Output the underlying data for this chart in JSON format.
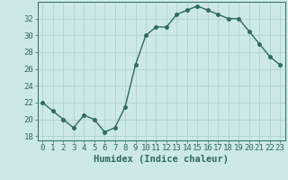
{
  "x": [
    0,
    1,
    2,
    3,
    4,
    5,
    6,
    7,
    8,
    9,
    10,
    11,
    12,
    13,
    14,
    15,
    16,
    17,
    18,
    19,
    20,
    21,
    22,
    23
  ],
  "y": [
    22,
    21,
    20,
    19,
    20.5,
    20,
    18.5,
    19,
    21.5,
    26.5,
    30,
    31,
    31,
    32.5,
    33,
    33.5,
    33,
    32.5,
    32,
    32,
    30.5,
    29,
    27.5,
    26.5
  ],
  "line_color": "#2d6b5e",
  "marker_color": "#2d6b5e",
  "bg_color": "#cce8e8",
  "grid_color": "#aacece",
  "xlabel": "Humidex (Indice chaleur)",
  "xlim": [
    -0.5,
    23.5
  ],
  "ylim": [
    17.5,
    34.0
  ],
  "yticks": [
    18,
    20,
    22,
    24,
    26,
    28,
    30,
    32
  ],
  "xticks": [
    0,
    1,
    2,
    3,
    4,
    5,
    6,
    7,
    8,
    9,
    10,
    11,
    12,
    13,
    14,
    15,
    16,
    17,
    18,
    19,
    20,
    21,
    22,
    23
  ],
  "xtick_labels": [
    "0",
    "1",
    "2",
    "3",
    "4",
    "5",
    "6",
    "7",
    "8",
    "9",
    "10",
    "11",
    "12",
    "13",
    "14",
    "15",
    "16",
    "17",
    "18",
    "19",
    "20",
    "21",
    "22",
    "23"
  ],
  "xlabel_fontsize": 7.5,
  "tick_fontsize": 6.5,
  "marker_size": 2.5,
  "line_width": 1.0
}
